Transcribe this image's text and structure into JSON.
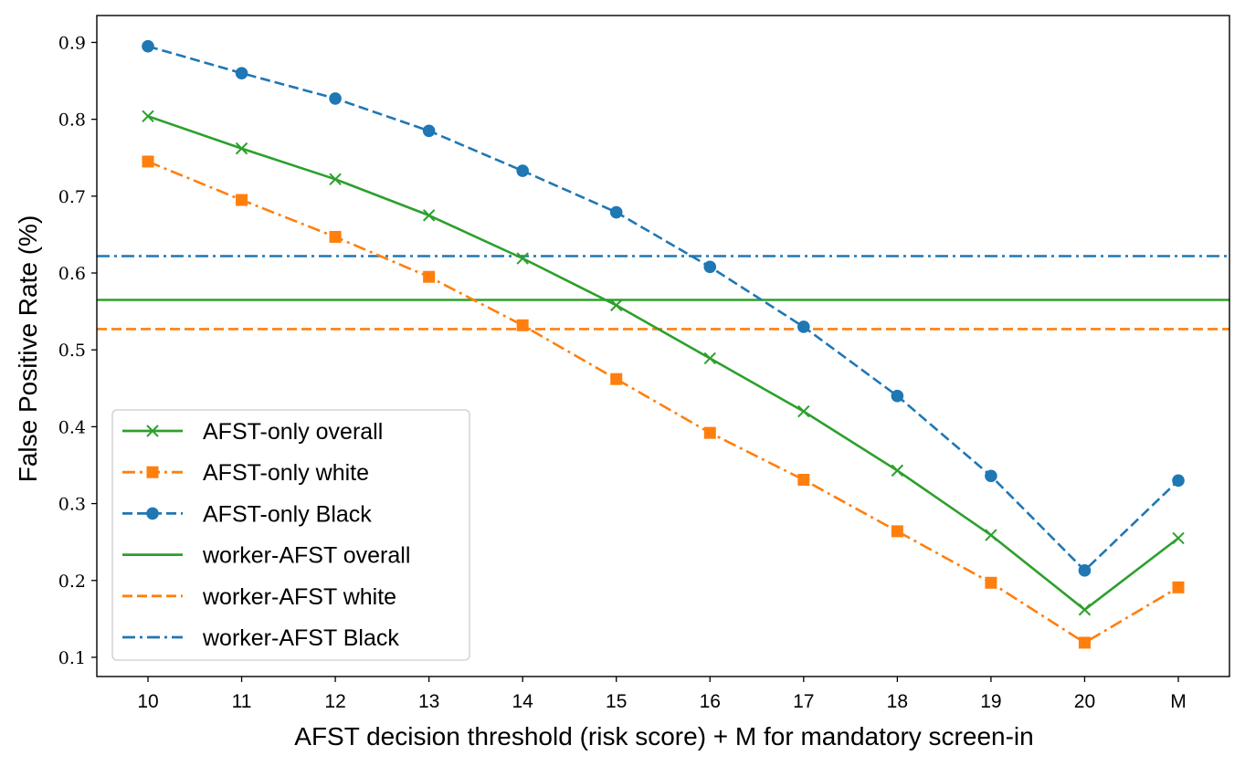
{
  "chart_data": {
    "type": "line",
    "xlabel": "AFST decision threshold (risk score) + M for mandatory screen-in",
    "ylabel": "False Positive Rate (%)",
    "categories": [
      "10",
      "11",
      "12",
      "13",
      "14",
      "15",
      "16",
      "17",
      "18",
      "19",
      "20",
      "M"
    ],
    "ylim": [
      0.075,
      0.935
    ],
    "yticks": [
      "0.1",
      "0.2",
      "0.3",
      "0.4",
      "0.5",
      "0.6",
      "0.7",
      "0.8",
      "0.9"
    ],
    "grid": false,
    "legend_position": "lower-left",
    "series": [
      {
        "name": "AFST-only overall",
        "color": "#2ca02c",
        "linestyle": "solid",
        "marker": "x",
        "values": [
          0.804,
          0.762,
          0.722,
          0.675,
          0.619,
          0.558,
          0.489,
          0.42,
          0.343,
          0.259,
          0.162,
          0.255
        ]
      },
      {
        "name": "AFST-only white",
        "color": "#ff7f0e",
        "linestyle": "dashdot",
        "marker": "square",
        "values": [
          0.745,
          0.695,
          0.647,
          0.595,
          0.532,
          0.462,
          0.392,
          0.331,
          0.264,
          0.197,
          0.119,
          0.191
        ]
      },
      {
        "name": "AFST-only Black",
        "color": "#1f77b4",
        "linestyle": "dashed",
        "marker": "circle",
        "values": [
          0.895,
          0.86,
          0.827,
          0.785,
          0.733,
          0.679,
          0.608,
          0.53,
          0.44,
          0.336,
          0.213,
          0.33
        ]
      }
    ],
    "reference_lines": [
      {
        "name": "worker-AFST overall",
        "color": "#2ca02c",
        "linestyle": "solid",
        "value": 0.565
      },
      {
        "name": "worker-AFST white",
        "color": "#ff7f0e",
        "linestyle": "dashed",
        "value": 0.527
      },
      {
        "name": "worker-AFST Black",
        "color": "#1f77b4",
        "linestyle": "dashdot",
        "value": 0.622
      }
    ]
  }
}
